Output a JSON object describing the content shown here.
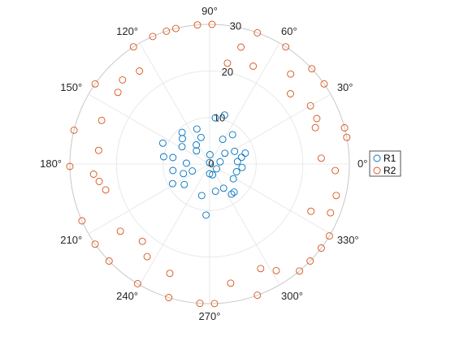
{
  "chart_data": {
    "type": "scatter",
    "coordinate_system": "polar",
    "theta_ticks": [
      "0°",
      "30°",
      "60°",
      "90°",
      "120°",
      "150°",
      "180°",
      "210°",
      "240°",
      "270°",
      "300°",
      "330°"
    ],
    "r_ticks": [
      "0",
      "10",
      "20",
      "30"
    ],
    "rlim": [
      0,
      30
    ],
    "grid": true,
    "legend_placement": "right",
    "marker": "open-circle",
    "series": [
      {
        "name": "R1",
        "color": "#0072BD",
        "points": [
          {
            "theta": 88,
            "r": 2
          },
          {
            "theta": 12,
            "r": 2.3
          },
          {
            "theta": 270,
            "r": 2.1
          },
          {
            "theta": 95,
            "r": 0.3
          },
          {
            "theta": 285,
            "r": 2.4
          },
          {
            "theta": 325,
            "r": 1.8
          },
          {
            "theta": 83,
            "r": 10
          },
          {
            "theta": 73,
            "r": 11
          },
          {
            "theta": 62,
            "r": 6
          },
          {
            "theta": 52,
            "r": 8
          },
          {
            "theta": 108,
            "r": 6
          },
          {
            "theta": 125,
            "r": 5
          },
          {
            "theta": 131,
            "r": 9
          },
          {
            "theta": 137,
            "r": 8
          },
          {
            "theta": 148,
            "r": 7
          },
          {
            "theta": 156,
            "r": 11
          },
          {
            "theta": 170,
            "r": 8
          },
          {
            "theta": 171,
            "r": 10
          },
          {
            "theta": 178,
            "r": 5
          },
          {
            "theta": 190,
            "r": 8
          },
          {
            "theta": 202,
            "r": 4
          },
          {
            "theta": 208,
            "r": 9
          },
          {
            "theta": 219,
            "r": 7
          },
          {
            "theta": 256,
            "r": 7
          },
          {
            "theta": 266,
            "r": 11
          },
          {
            "theta": 282,
            "r": 6
          },
          {
            "theta": 300,
            "r": 6
          },
          {
            "theta": 306,
            "r": 8
          },
          {
            "theta": 311,
            "r": 8
          },
          {
            "theta": 328,
            "r": 6
          },
          {
            "theta": 344,
            "r": 6
          },
          {
            "theta": 354,
            "r": 7
          },
          {
            "theta": 5,
            "r": 6
          },
          {
            "theta": 12,
            "r": 7
          },
          {
            "theta": 17,
            "r": 8
          },
          {
            "theta": 27,
            "r": 6
          },
          {
            "theta": 35,
            "r": 4
          },
          {
            "theta": 110,
            "r": 8
          },
          {
            "theta": 135,
            "r": 4
          },
          {
            "theta": 200,
            "r": 6
          }
        ]
      },
      {
        "name": "R2",
        "color": "#D95319",
        "points": [
          {
            "theta": 80,
            "r": 22
          },
          {
            "theta": 75,
            "r": 26
          },
          {
            "theta": 66,
            "r": 23
          },
          {
            "theta": 57,
            "r": 31
          },
          {
            "theta": 48,
            "r": 26
          },
          {
            "theta": 43,
            "r": 35
          },
          {
            "theta": 35,
            "r": 30
          },
          {
            "theta": 30,
            "r": 25
          },
          {
            "theta": 23,
            "r": 25
          },
          {
            "theta": 15,
            "r": 31
          },
          {
            "theta": 11,
            "r": 32
          },
          {
            "theta": 357,
            "r": 27
          },
          {
            "theta": 3,
            "r": 24
          },
          {
            "theta": 346,
            "r": 28
          },
          {
            "theta": 338,
            "r": 28
          },
          {
            "theta": 329,
            "r": 30
          },
          {
            "theta": 323,
            "r": 35
          },
          {
            "theta": 316,
            "r": 30
          },
          {
            "theta": 310,
            "r": 35
          },
          {
            "theta": 302,
            "r": 27
          },
          {
            "theta": 296,
            "r": 25
          },
          {
            "theta": 290,
            "r": 31
          },
          {
            "theta": 280,
            "r": 26
          },
          {
            "theta": 272,
            "r": 32
          },
          {
            "theta": 266,
            "r": 30
          },
          {
            "theta": 253,
            "r": 31
          },
          {
            "theta": 250,
            "r": 25
          },
          {
            "theta": 239,
            "r": 30
          },
          {
            "theta": 236,
            "r": 24
          },
          {
            "theta": 229,
            "r": 22
          },
          {
            "theta": 224,
            "r": 32
          },
          {
            "theta": 217,
            "r": 24
          },
          {
            "theta": 215,
            "r": 30
          },
          {
            "theta": 204,
            "r": 30
          },
          {
            "theta": 194,
            "r": 23
          },
          {
            "theta": 189,
            "r": 24
          },
          {
            "theta": 185,
            "r": 25
          },
          {
            "theta": 181,
            "r": 34
          },
          {
            "theta": 173,
            "r": 24
          },
          {
            "theta": 166,
            "r": 31
          },
          {
            "theta": 158,
            "r": 25
          },
          {
            "theta": 145,
            "r": 35
          },
          {
            "theta": 142,
            "r": 25
          },
          {
            "theta": 136,
            "r": 26
          },
          {
            "theta": 127,
            "r": 25
          },
          {
            "theta": 123,
            "r": 32
          },
          {
            "theta": 114,
            "r": 37
          },
          {
            "theta": 104,
            "r": 34
          },
          {
            "theta": 108,
            "r": 32
          },
          {
            "theta": 95,
            "r": 30
          },
          {
            "theta": 89,
            "r": 30
          },
          {
            "theta": 70,
            "r": 34
          },
          {
            "theta": 41,
            "r": 23
          },
          {
            "theta": 19,
            "r": 24
          },
          {
            "theta": 335,
            "r": 24
          }
        ]
      }
    ]
  }
}
